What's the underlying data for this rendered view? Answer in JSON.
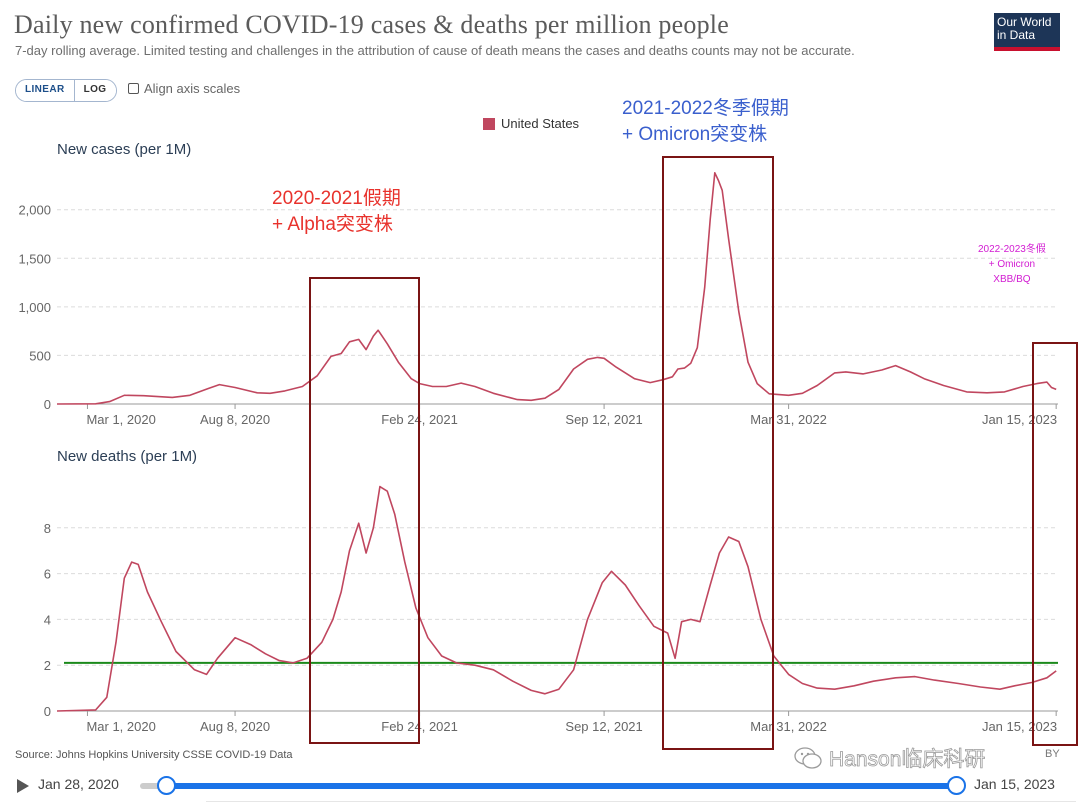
{
  "header": {
    "title": "Daily new confirmed COVID-19 cases & deaths per million people",
    "subtitle": "7-day rolling average. Limited testing and challenges in the attribution of cause of death means the cases and deaths counts may not be accurate.",
    "logo_line1": "Our World",
    "logo_line2": "in Data"
  },
  "controls": {
    "linear_label": "LINEAR",
    "log_label": "LOG",
    "align_label": "Align axis scales"
  },
  "legend": {
    "label": "United States",
    "color": "#c0475f"
  },
  "annotations": {
    "box1_line1": "2020-2021假期",
    "box1_line2": "+ Alpha突变株",
    "box2_line1": "2021-2022冬季假期",
    "box2_line2": "+ Omicron突变株",
    "box3_line1": "2022-2023冬假",
    "box3_line2": "+ Omicron",
    "box3_line3": "XBB/BQ"
  },
  "footer": {
    "source": "Source: Johns Hopkins University CSSE COVID-19 Data",
    "cc_fragment": "BY",
    "watermark": "Hanson临床科研",
    "timeline_start": "Jan 28, 2020",
    "timeline_end": "Jan 15, 2023"
  },
  "chart_data": [
    {
      "type": "line",
      "ylabel": "New cases (per 1M)",
      "yticks": [
        "0",
        "500",
        "1,000",
        "1,500",
        "2,000"
      ],
      "ytick_values": [
        0,
        500,
        1000,
        1500,
        2000
      ],
      "ylim": [
        0,
        2450
      ],
      "xticks": [
        "Mar 1, 2020",
        "Aug 8, 2020",
        "Feb 24, 2021",
        "Sep 12, 2021",
        "Mar 31, 2022",
        "Jan 15, 2023"
      ],
      "xtick_dates": [
        "2020-03-01",
        "2020-08-08",
        "2021-02-24",
        "2021-09-12",
        "2022-03-31",
        "2023-01-15"
      ],
      "xlim": [
        "2020-01-28",
        "2023-01-17"
      ],
      "series": [
        {
          "name": "United States",
          "color": "#c0475f",
          "points": [
            [
              "2020-01-28",
              0
            ],
            [
              "2020-03-10",
              2
            ],
            [
              "2020-03-25",
              25
            ],
            [
              "2020-04-10",
              90
            ],
            [
              "2020-05-01",
              85
            ],
            [
              "2020-06-01",
              68
            ],
            [
              "2020-06-20",
              90
            ],
            [
              "2020-07-10",
              160
            ],
            [
              "2020-07-22",
              200
            ],
            [
              "2020-08-08",
              170
            ],
            [
              "2020-09-01",
              115
            ],
            [
              "2020-09-15",
              110
            ],
            [
              "2020-10-01",
              135
            ],
            [
              "2020-10-20",
              180
            ],
            [
              "2020-11-05",
              290
            ],
            [
              "2020-11-20",
              490
            ],
            [
              "2020-12-01",
              520
            ],
            [
              "2020-12-10",
              640
            ],
            [
              "2020-12-20",
              665
            ],
            [
              "2020-12-28",
              560
            ],
            [
              "2021-01-05",
              700
            ],
            [
              "2021-01-10",
              760
            ],
            [
              "2021-01-20",
              620
            ],
            [
              "2021-02-01",
              430
            ],
            [
              "2021-02-15",
              260
            ],
            [
              "2021-02-24",
              210
            ],
            [
              "2021-03-10",
              180
            ],
            [
              "2021-03-25",
              180
            ],
            [
              "2021-04-10",
              215
            ],
            [
              "2021-04-25",
              180
            ],
            [
              "2021-05-15",
              110
            ],
            [
              "2021-06-10",
              45
            ],
            [
              "2021-06-25",
              38
            ],
            [
              "2021-07-10",
              60
            ],
            [
              "2021-07-25",
              150
            ],
            [
              "2021-08-10",
              360
            ],
            [
              "2021-08-25",
              460
            ],
            [
              "2021-09-05",
              480
            ],
            [
              "2021-09-12",
              470
            ],
            [
              "2021-09-25",
              380
            ],
            [
              "2021-10-15",
              260
            ],
            [
              "2021-11-01",
              220
            ],
            [
              "2021-11-15",
              250
            ],
            [
              "2021-11-25",
              280
            ],
            [
              "2021-12-01",
              360
            ],
            [
              "2021-12-08",
              370
            ],
            [
              "2021-12-15",
              420
            ],
            [
              "2021-12-22",
              580
            ],
            [
              "2021-12-30",
              1200
            ],
            [
              "2022-01-05",
              1900
            ],
            [
              "2022-01-10",
              2380
            ],
            [
              "2022-01-14",
              2300
            ],
            [
              "2022-01-18",
              2200
            ],
            [
              "2022-01-25",
              1700
            ],
            [
              "2022-02-05",
              950
            ],
            [
              "2022-02-15",
              430
            ],
            [
              "2022-02-25",
              210
            ],
            [
              "2022-03-10",
              105
            ],
            [
              "2022-03-31",
              90
            ],
            [
              "2022-04-15",
              110
            ],
            [
              "2022-05-01",
              190
            ],
            [
              "2022-05-20",
              320
            ],
            [
              "2022-06-01",
              330
            ],
            [
              "2022-06-20",
              310
            ],
            [
              "2022-07-10",
              350
            ],
            [
              "2022-07-25",
              395
            ],
            [
              "2022-08-10",
              330
            ],
            [
              "2022-08-25",
              260
            ],
            [
              "2022-09-15",
              190
            ],
            [
              "2022-10-10",
              125
            ],
            [
              "2022-11-01",
              115
            ],
            [
              "2022-11-20",
              125
            ],
            [
              "2022-12-10",
              180
            ],
            [
              "2022-12-25",
              210
            ],
            [
              "2023-01-05",
              225
            ],
            [
              "2023-01-10",
              170
            ],
            [
              "2023-01-15",
              150
            ]
          ]
        }
      ]
    },
    {
      "type": "line",
      "ylabel": "New deaths (per 1M)",
      "yticks": [
        "0",
        "2",
        "4",
        "6",
        "8"
      ],
      "ytick_values": [
        0,
        2,
        4,
        6,
        8
      ],
      "ylim": [
        0,
        10
      ],
      "xticks": [
        "Mar 1, 2020",
        "Aug 8, 2020",
        "Feb 24, 2021",
        "Sep 12, 2021",
        "Mar 31, 2022",
        "Jan 15, 2023"
      ],
      "xtick_dates": [
        "2020-03-01",
        "2020-08-08",
        "2021-02-24",
        "2021-09-12",
        "2022-03-31",
        "2023-01-15"
      ],
      "xlim": [
        "2020-01-28",
        "2023-01-17"
      ],
      "reference_line": {
        "value": 2.1,
        "color": "#1b8a1b"
      },
      "series": [
        {
          "name": "United States",
          "color": "#c0475f",
          "points": [
            [
              "2020-01-28",
              0
            ],
            [
              "2020-03-10",
              0.05
            ],
            [
              "2020-03-22",
              0.6
            ],
            [
              "2020-04-01",
              3.0
            ],
            [
              "2020-04-10",
              5.8
            ],
            [
              "2020-04-18",
              6.5
            ],
            [
              "2020-04-25",
              6.4
            ],
            [
              "2020-05-05",
              5.2
            ],
            [
              "2020-05-20",
              3.9
            ],
            [
              "2020-06-05",
              2.6
            ],
            [
              "2020-06-25",
              1.8
            ],
            [
              "2020-07-08",
              1.6
            ],
            [
              "2020-07-20",
              2.3
            ],
            [
              "2020-08-08",
              3.2
            ],
            [
              "2020-08-25",
              2.9
            ],
            [
              "2020-09-10",
              2.5
            ],
            [
              "2020-09-25",
              2.2
            ],
            [
              "2020-10-10",
              2.1
            ],
            [
              "2020-10-25",
              2.3
            ],
            [
              "2020-11-10",
              3.0
            ],
            [
              "2020-11-22",
              4.0
            ],
            [
              "2020-12-01",
              5.2
            ],
            [
              "2020-12-10",
              7.0
            ],
            [
              "2020-12-20",
              8.2
            ],
            [
              "2020-12-28",
              6.9
            ],
            [
              "2021-01-05",
              8.0
            ],
            [
              "2021-01-12",
              9.8
            ],
            [
              "2021-01-20",
              9.6
            ],
            [
              "2021-01-28",
              8.6
            ],
            [
              "2021-02-08",
              6.5
            ],
            [
              "2021-02-20",
              4.5
            ],
            [
              "2021-03-05",
              3.2
            ],
            [
              "2021-03-20",
              2.4
            ],
            [
              "2021-04-05",
              2.1
            ],
            [
              "2021-04-25",
              2.0
            ],
            [
              "2021-05-15",
              1.8
            ],
            [
              "2021-06-05",
              1.3
            ],
            [
              "2021-06-25",
              0.9
            ],
            [
              "2021-07-10",
              0.75
            ],
            [
              "2021-07-25",
              0.95
            ],
            [
              "2021-08-10",
              1.8
            ],
            [
              "2021-08-25",
              4.0
            ],
            [
              "2021-09-10",
              5.6
            ],
            [
              "2021-09-20",
              6.1
            ],
            [
              "2021-10-05",
              5.5
            ],
            [
              "2021-10-20",
              4.6
            ],
            [
              "2021-11-05",
              3.7
            ],
            [
              "2021-11-20",
              3.4
            ],
            [
              "2021-11-28",
              2.3
            ],
            [
              "2021-12-05",
              3.9
            ],
            [
              "2021-12-15",
              4.0
            ],
            [
              "2021-12-25",
              3.9
            ],
            [
              "2022-01-05",
              5.5
            ],
            [
              "2022-01-15",
              6.9
            ],
            [
              "2022-01-25",
              7.6
            ],
            [
              "2022-02-05",
              7.4
            ],
            [
              "2022-02-15",
              6.3
            ],
            [
              "2022-03-01",
              4.0
            ],
            [
              "2022-03-15",
              2.4
            ],
            [
              "2022-03-31",
              1.6
            ],
            [
              "2022-04-15",
              1.2
            ],
            [
              "2022-05-01",
              1.0
            ],
            [
              "2022-05-20",
              0.95
            ],
            [
              "2022-06-10",
              1.1
            ],
            [
              "2022-07-01",
              1.3
            ],
            [
              "2022-07-25",
              1.45
            ],
            [
              "2022-08-15",
              1.5
            ],
            [
              "2022-09-05",
              1.35
            ],
            [
              "2022-10-01",
              1.2
            ],
            [
              "2022-10-25",
              1.05
            ],
            [
              "2022-11-15",
              0.95
            ],
            [
              "2022-12-01",
              1.1
            ],
            [
              "2022-12-20",
              1.25
            ],
            [
              "2023-01-05",
              1.45
            ],
            [
              "2023-01-15",
              1.75
            ]
          ]
        }
      ]
    }
  ]
}
